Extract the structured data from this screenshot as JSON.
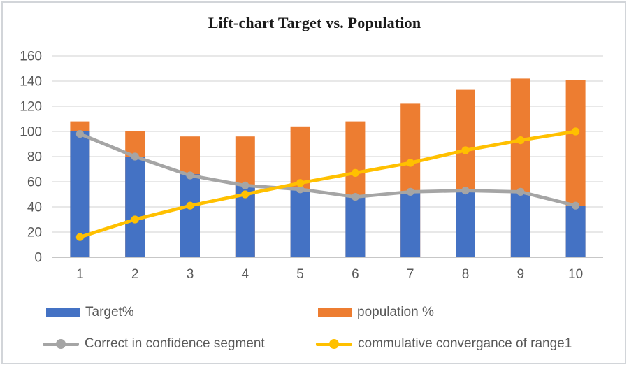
{
  "chart_data": {
    "type": "bar",
    "title": "Lift-chart Target vs. Population",
    "categories": [
      "1",
      "2",
      "3",
      "4",
      "5",
      "6",
      "7",
      "8",
      "9",
      "10"
    ],
    "series": [
      {
        "name": "Target%",
        "kind": "bar",
        "color": "#4472C4",
        "values": [
          100,
          80,
          66,
          57,
          54,
          48,
          52,
          53,
          52,
          41
        ]
      },
      {
        "name": "population %",
        "kind": "bar",
        "color": "#ED7D31",
        "values": [
          108,
          100,
          96,
          96,
          104,
          108,
          122,
          133,
          142,
          141
        ]
      },
      {
        "name": "Correct in confidence segment",
        "kind": "line",
        "color": "#A5A5A5",
        "values": [
          98,
          80,
          65,
          57,
          54,
          48,
          52,
          53,
          52,
          41
        ]
      },
      {
        "name": "commulative convergance of range1",
        "kind": "line",
        "color": "#FFC000",
        "values": [
          16,
          30,
          41,
          50,
          59,
          67,
          75,
          85,
          93,
          100
        ]
      }
    ],
    "xlabel": "",
    "ylabel": "",
    "ylim": [
      0,
      160
    ],
    "ytick_step": 20,
    "grid": true,
    "bar_overlap": "full",
    "legend_position": "bottom",
    "colors": {
      "axis_text": "#595959",
      "gridline": "#D9D9D9",
      "axis_line": "#BFBFBF",
      "frame_border": "#D2D5D9",
      "title_text": "#1A1A1A"
    }
  }
}
